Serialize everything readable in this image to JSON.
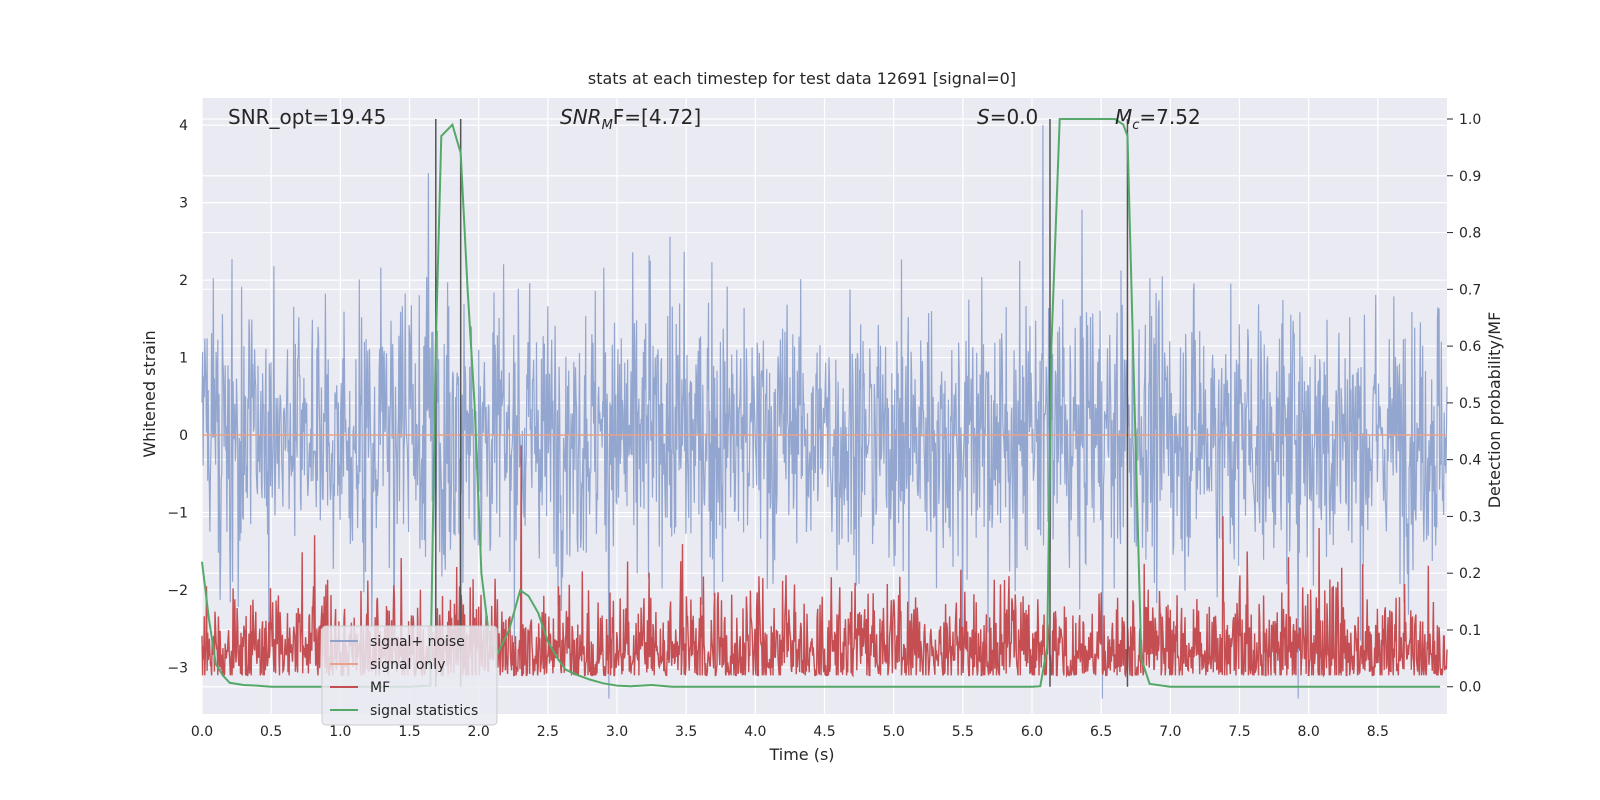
{
  "chart_data": {
    "type": "line",
    "title": "stats at each timestep for test data 12691 [signal=0]",
    "xlabel": "Time (s)",
    "ylabel_left": "Whitened strain",
    "ylabel_right": "Detection probability/MF",
    "xlim": [
      0.0,
      9.0
    ],
    "ylim_left": [
      -3.6,
      4.35
    ],
    "ylim_right": [
      -0.048,
      1.037
    ],
    "x_ticks": [
      "0.0",
      "0.5",
      "1.0",
      "1.5",
      "2.0",
      "2.5",
      "3.0",
      "3.5",
      "4.0",
      "4.5",
      "5.0",
      "5.5",
      "6.0",
      "6.5",
      "7.0",
      "7.5",
      "8.0",
      "8.5"
    ],
    "y_ticks_left": [
      "−3",
      "−2",
      "−1",
      "0",
      "1",
      "2",
      "3",
      "4"
    ],
    "y_ticks_right": [
      "0.0",
      "0.1",
      "0.2",
      "0.3",
      "0.4",
      "0.5",
      "0.6",
      "0.7",
      "0.8",
      "0.9",
      "1.0"
    ],
    "grid": true,
    "legend_position": "lower-left",
    "annotations": {
      "snr_opt": "SNR_opt=19.45",
      "snr_mf_base": "SNR",
      "snr_mf_sub": "M",
      "snr_mf_rest": "F=[4.72]",
      "s_italic": "S",
      "s_rest": "=0.0",
      "mc_italic": "M",
      "mc_sub": "c",
      "mc_rest": "=7.52"
    },
    "vertical_lines_x": [
      1.69,
      1.87,
      6.13,
      6.69
    ],
    "series": [
      {
        "name": "signal+ noise",
        "color": "#8ea2cc",
        "description_range": [
          -3.4,
          4.0
        ],
        "envelope_abs": 1.8
      },
      {
        "name": "signal only",
        "color": "#e8a28a",
        "values_constant": 0.0
      },
      {
        "name": "MF",
        "color": "#c44e52",
        "range": [
          0.02,
          0.62
        ]
      },
      {
        "name": "signal statistics",
        "color": "#55a868",
        "points": [
          [
            0.0,
            0.22
          ],
          [
            0.05,
            0.12
          ],
          [
            0.1,
            0.04
          ],
          [
            0.15,
            0.02
          ],
          [
            0.2,
            0.007
          ],
          [
            0.3,
            0.003
          ],
          [
            0.4,
            0.002
          ],
          [
            0.5,
            0.0
          ],
          [
            1.0,
            0.0
          ],
          [
            1.5,
            0.0
          ],
          [
            1.65,
            0.002
          ],
          [
            1.69,
            0.6
          ],
          [
            1.73,
            0.97
          ],
          [
            1.81,
            0.99
          ],
          [
            1.87,
            0.94
          ],
          [
            1.92,
            0.7
          ],
          [
            1.97,
            0.5
          ],
          [
            2.02,
            0.2
          ],
          [
            2.08,
            0.08
          ],
          [
            2.14,
            0.06
          ],
          [
            2.22,
            0.1
          ],
          [
            2.3,
            0.17
          ],
          [
            2.36,
            0.16
          ],
          [
            2.43,
            0.13
          ],
          [
            2.5,
            0.08
          ],
          [
            2.57,
            0.05
          ],
          [
            2.63,
            0.03
          ],
          [
            2.7,
            0.022
          ],
          [
            2.8,
            0.013
          ],
          [
            2.9,
            0.006
          ],
          [
            3.0,
            0.002
          ],
          [
            3.1,
            0.001
          ],
          [
            3.25,
            0.003
          ],
          [
            3.4,
            0.0
          ],
          [
            4.0,
            0.0
          ],
          [
            5.0,
            0.0
          ],
          [
            6.0,
            0.0
          ],
          [
            6.06,
            0.001
          ],
          [
            6.11,
            0.07
          ],
          [
            6.14,
            0.6
          ],
          [
            6.2,
            1.0
          ],
          [
            6.4,
            1.0
          ],
          [
            6.6,
            1.0
          ],
          [
            6.66,
            0.99
          ],
          [
            6.69,
            0.97
          ],
          [
            6.73,
            0.6
          ],
          [
            6.79,
            0.05
          ],
          [
            6.85,
            0.005
          ],
          [
            7.0,
            0.0
          ],
          [
            8.0,
            0.0
          ],
          [
            8.95,
            0.0
          ]
        ]
      }
    ]
  }
}
